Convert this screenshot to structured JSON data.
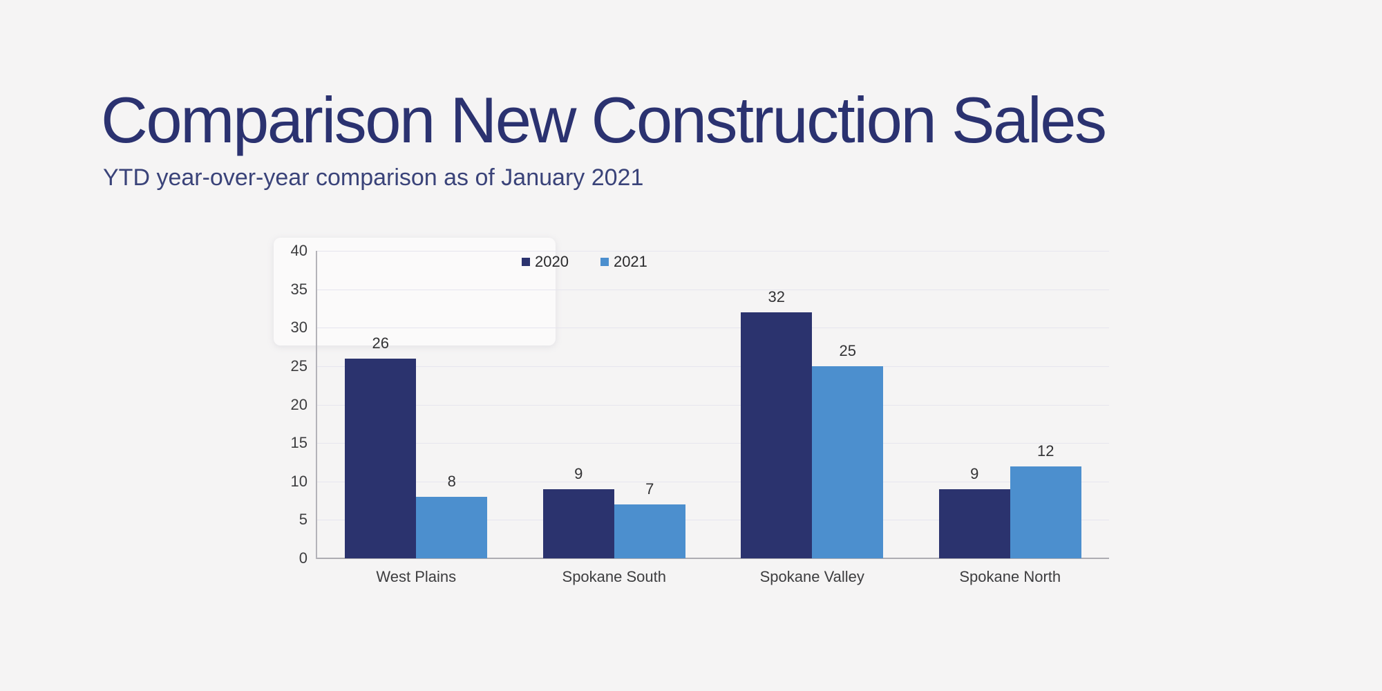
{
  "page": {
    "background_color": "#f5f4f4"
  },
  "header": {
    "title": "Comparison New Construction Sales",
    "subtitle": "YTD year-over-year comparison as of January 2021",
    "title_color": "#2b3270"
  },
  "chart_data": {
    "type": "bar",
    "title": "",
    "categories": [
      "West Plains",
      "Spokane South",
      "Spokane Valley",
      "Spokane North"
    ],
    "series": [
      {
        "name": "2020",
        "color": "#2b336e",
        "values": [
          26,
          9,
          32,
          9
        ]
      },
      {
        "name": "2021",
        "color": "#4c8fce",
        "values": [
          8,
          7,
          25,
          12
        ]
      }
    ],
    "xlabel": "",
    "ylabel": "",
    "ylim": [
      0,
      40
    ],
    "ytick_step": 5,
    "ytick_labels": [
      "0",
      "5",
      "10",
      "15",
      "20",
      "25",
      "30",
      "35",
      "40"
    ],
    "grid": true,
    "value_labels": true,
    "legend_position": "top",
    "grid_color": "#e6e5ee",
    "axis_color": "#adacb2",
    "label_color": "#3d3d3f"
  }
}
